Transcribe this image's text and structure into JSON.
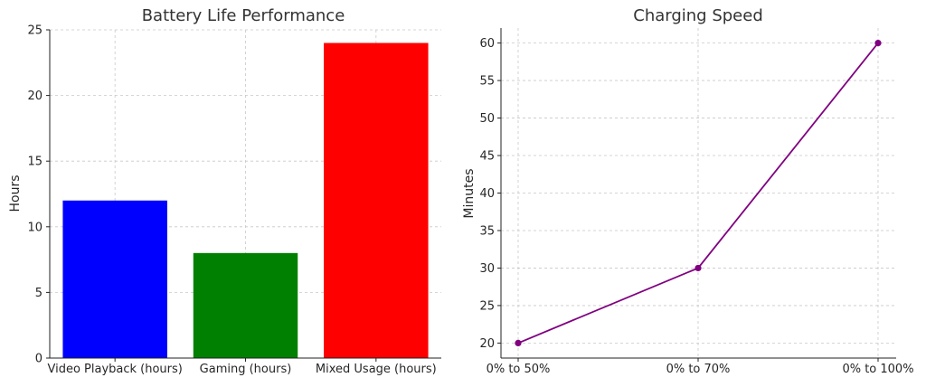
{
  "chart_data": [
    {
      "type": "bar",
      "title": "Battery Life Performance",
      "xlabel": "",
      "ylabel": "Hours",
      "categories": [
        "Video Playback (hours)",
        "Gaming (hours)",
        "Mixed Usage (hours)"
      ],
      "values": [
        12,
        8,
        24
      ],
      "colors": [
        "#0000ff",
        "#008000",
        "#ff0000"
      ],
      "ylim": [
        0,
        25
      ],
      "yticks": [
        0,
        5,
        10,
        15,
        20,
        25
      ],
      "grid": true
    },
    {
      "type": "line",
      "title": "Charging Speed",
      "xlabel": "",
      "ylabel": "Minutes",
      "x": [
        "0% to 50%",
        "0% to 70%",
        "0% to 100%"
      ],
      "values": [
        20,
        30,
        60
      ],
      "color": "#800080",
      "ylim": [
        18.0,
        62.0
      ],
      "yticks": [
        20,
        25,
        30,
        35,
        40,
        45,
        50,
        55,
        60
      ],
      "grid": true
    }
  ]
}
